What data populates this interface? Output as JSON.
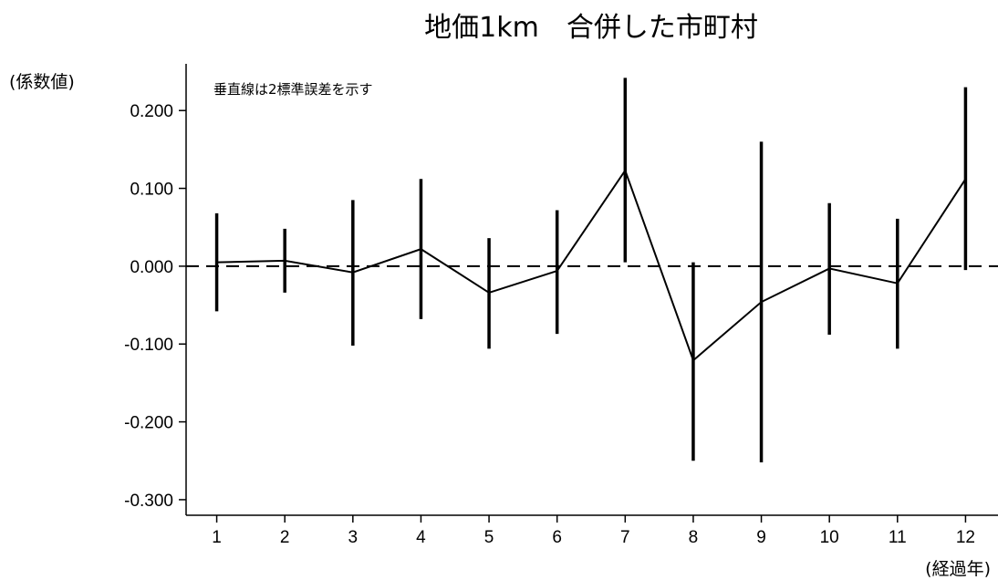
{
  "chart_data": {
    "type": "line",
    "title": "地価1km　合併した市町村",
    "ylabel": "(係数値)",
    "xlabel": "(経過年)",
    "annotation": "垂直線は2標準誤差を示す",
    "x": [
      1,
      2,
      3,
      4,
      5,
      6,
      7,
      8,
      9,
      10,
      11,
      12
    ],
    "series": [
      {
        "values": [
          0.005,
          0.007,
          -0.008,
          0.022,
          -0.034,
          -0.006,
          0.123,
          -0.121,
          -0.046,
          -0.003,
          -0.022,
          0.112
        ],
        "lower": [
          -0.058,
          -0.034,
          -0.102,
          -0.068,
          -0.106,
          -0.087,
          0.005,
          -0.25,
          -0.252,
          -0.088,
          -0.106,
          -0.005
        ],
        "upper": [
          0.068,
          0.048,
          0.085,
          0.112,
          0.036,
          0.072,
          0.242,
          0.005,
          0.16,
          0.081,
          0.061,
          0.23
        ]
      }
    ],
    "yticks": [
      "0.200",
      "0.100",
      "0.000",
      "-0.100",
      "-0.200",
      "-0.300"
    ],
    "xticks": [
      "1",
      "2",
      "3",
      "4",
      "5",
      "6",
      "7",
      "8",
      "9",
      "10",
      "11",
      "12"
    ],
    "ylim": [
      -0.32,
      0.26
    ],
    "xlim": [
      0.55,
      12.45
    ],
    "reference_line": 0,
    "grid": false,
    "colors": {
      "line": "#000000",
      "errorbar": "#000000",
      "reference": "#000000"
    }
  }
}
